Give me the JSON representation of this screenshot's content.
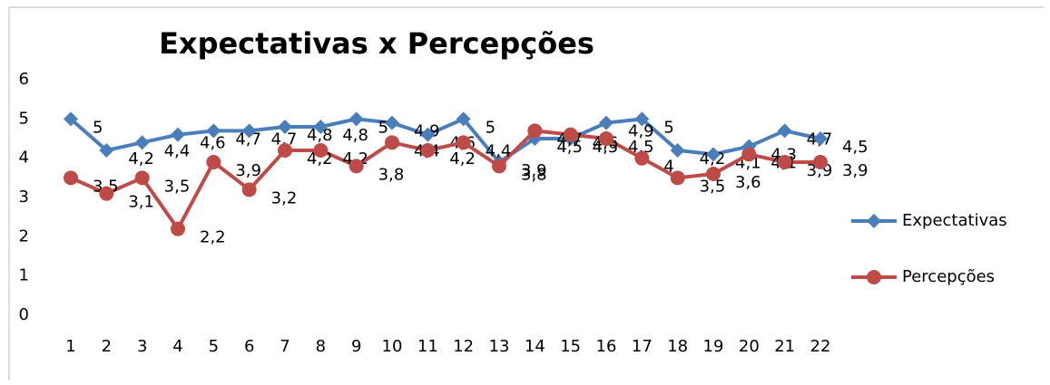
{
  "chart_data": {
    "type": "line",
    "title": "Expectativas x Percepções",
    "categories": [
      "1",
      "2",
      "3",
      "4",
      "5",
      "6",
      "7",
      "8",
      "9",
      "10",
      "11",
      "12",
      "13",
      "14",
      "15",
      "16",
      "17",
      "18",
      "19",
      "20",
      "21",
      "22"
    ],
    "series": [
      {
        "name": "Expectativas",
        "color": "#4a7ebb",
        "marker": "diamond",
        "values": [
          5,
          4.2,
          4.4,
          4.6,
          4.7,
          4.7,
          4.8,
          4.8,
          5,
          4.9,
          4.6,
          5,
          3.9,
          4.5,
          4.5,
          4.9,
          5,
          4.2,
          4.1,
          4.3,
          4.7,
          4.5
        ],
        "value_labels": [
          "5",
          "4,2",
          "4,4",
          "4,6",
          "4,7",
          "4,7",
          "4,8",
          "4,8",
          "5",
          "4,9",
          "4,6",
          "5",
          "3,9",
          "4,5",
          "4,5",
          "4,9",
          "5",
          "4,2",
          "4,1",
          "4,3",
          "4,7",
          "4,5"
        ]
      },
      {
        "name": "Percepções",
        "color": "#be4b48",
        "marker": "circle",
        "values": [
          3.5,
          3.1,
          3.5,
          2.2,
          3.9,
          3.2,
          4.2,
          4.2,
          3.8,
          4.4,
          4.2,
          4.4,
          3.8,
          4.7,
          4.6,
          4.5,
          4,
          3.5,
          3.6,
          4.1,
          3.9,
          3.9
        ],
        "value_labels": [
          "3,5",
          "3,1",
          "3,5",
          "2,2",
          "3,9",
          "3,2",
          "4,2",
          "4,2",
          "3,8",
          "4,4",
          "4,2",
          "4,4",
          "3,8",
          "4,7",
          "4,6",
          "4,5",
          "4",
          "3,5",
          "3,6",
          "4,1",
          "3,9",
          "3,9"
        ]
      }
    ],
    "ylim": [
      0,
      6
    ],
    "yticks": [
      0,
      1,
      2,
      3,
      4,
      5,
      6
    ],
    "grid": false,
    "legend": "right"
  }
}
